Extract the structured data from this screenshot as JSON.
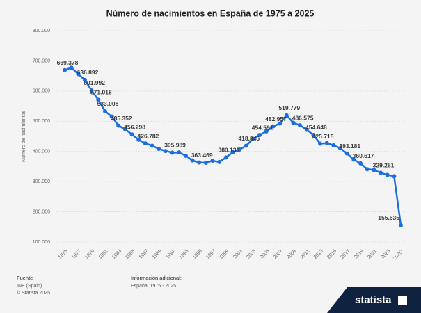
{
  "chart_data": {
    "type": "line",
    "title": "Número de nacimientos en España de 1975 a 2025",
    "y_label": "Número de nacimientos",
    "categories": [
      "1975",
      null,
      "1977",
      null,
      "1979",
      null,
      "1981",
      null,
      "1983",
      null,
      "1985",
      null,
      "1987",
      null,
      "1989",
      null,
      "1991",
      null,
      "1993",
      null,
      "1995",
      null,
      "1997",
      null,
      "1999",
      null,
      "2001",
      null,
      "2003",
      null,
      "2005",
      null,
      "2007",
      null,
      "2009",
      null,
      "2011",
      null,
      "2013",
      null,
      "2015",
      null,
      "2017",
      null,
      "2019",
      null,
      "2021",
      null,
      "2023",
      null,
      "2025*"
    ],
    "values": [
      669378,
      677456,
      656357,
      636892,
      601992,
      571018,
      533008,
      515706,
      485352,
      473281,
      456298,
      438750,
      426782,
      418919,
      408434,
      401425,
      395989,
      396747,
      385786,
      370148,
      363469,
      362626,
      369035,
      365193,
      380130,
      397632,
      406380,
      418846,
      441881,
      454591,
      466371,
      482957,
      492527,
      519779,
      494997,
      486575,
      471999,
      454648,
      425715,
      427595,
      420290,
      410583,
      393181,
      372777,
      360617,
      341315,
      338532,
      329251,
      322075,
      318005,
      155635
    ],
    "value_labels": [
      "669.378",
      null,
      null,
      "636.892",
      "601.992",
      "571.018",
      "533.008",
      null,
      "485.352",
      null,
      "456.298",
      null,
      "426.782",
      null,
      null,
      null,
      "395.989",
      null,
      null,
      null,
      "363.469",
      null,
      null,
      null,
      "380.130",
      null,
      null,
      "418.846",
      null,
      "454.591",
      null,
      "482.957",
      null,
      "519.779",
      null,
      "486.575",
      null,
      "454.648",
      "425.715",
      null,
      null,
      null,
      "393.181",
      null,
      "360.617",
      null,
      null,
      "329.251",
      null,
      null,
      "155.635"
    ],
    "color": "#1a6ee0",
    "ylim": [
      100000,
      800000
    ],
    "yticks": [
      {
        "value": 100000,
        "label": "100.000"
      },
      {
        "value": 200000,
        "label": "200.000"
      },
      {
        "value": 300000,
        "label": "300.000"
      },
      {
        "value": 400000,
        "label": "400.000"
      },
      {
        "value": 500000,
        "label": "500.000"
      },
      {
        "value": 600000,
        "label": "600.000"
      },
      {
        "value": 700000,
        "label": "700.000"
      },
      {
        "value": 800000,
        "label": "800.000"
      }
    ],
    "grid": true
  },
  "footer": {
    "source_title": "Fuente",
    "source": "INE (Spain)",
    "copyright": "© Statista 2025",
    "info_title": "Información adicional:",
    "info": "España; 1975 - 2025",
    "logo": "statista"
  }
}
